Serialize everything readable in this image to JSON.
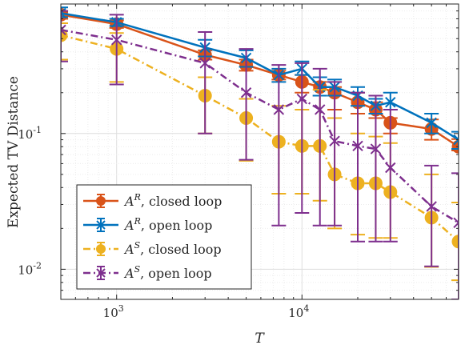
{
  "chart_data": {
    "type": "line",
    "xlabel": "T",
    "ylabel": "Expected TV Distance",
    "xscale": "log",
    "yscale": "log",
    "xlim": [
      500,
      70000
    ],
    "ylim": [
      0.006,
      0.9
    ],
    "grid": true,
    "legend_position": "bottom-left",
    "x_ticks": [
      {
        "value": 1000,
        "base": "10",
        "exp": "3"
      },
      {
        "value": 10000,
        "base": "10",
        "exp": "4"
      }
    ],
    "y_ticks": [
      {
        "value": 0.01,
        "base": "10",
        "exp": "-2"
      },
      {
        "value": 0.1,
        "base": "10",
        "exp": "-1"
      }
    ],
    "series": [
      {
        "name": "A^R, closed loop",
        "legend_base": "A",
        "legend_sup": "R",
        "legend_rest": ", closed loop",
        "color": "#D95319",
        "line": "solid",
        "marker": "circle",
        "x": [
          500,
          1000,
          3000,
          5000,
          7500,
          10000,
          12500,
          15000,
          20000,
          25000,
          30000,
          50000,
          70000
        ],
        "y": [
          0.75,
          0.64,
          0.38,
          0.32,
          0.27,
          0.24,
          0.22,
          0.2,
          0.17,
          0.15,
          0.12,
          0.108,
          0.08
        ],
        "err_low": [
          0.7,
          0.6,
          0.35,
          0.29,
          0.25,
          0.2,
          0.19,
          0.15,
          0.14,
          0.13,
          0.1,
          0.09,
          0.075
        ],
        "err_high": [
          0.78,
          0.68,
          0.41,
          0.35,
          0.29,
          0.27,
          0.24,
          0.22,
          0.2,
          0.17,
          0.13,
          0.127,
          0.091
        ]
      },
      {
        "name": "A^R, open loop",
        "legend_base": "A",
        "legend_sup": "R",
        "legend_rest": ", open loop",
        "color": "#0072BD",
        "line": "solid",
        "marker": "x",
        "x": [
          500,
          1000,
          3000,
          5000,
          7500,
          10000,
          12500,
          15000,
          20000,
          25000,
          30000,
          50000,
          70000
        ],
        "y": [
          0.77,
          0.66,
          0.43,
          0.36,
          0.27,
          0.3,
          0.22,
          0.22,
          0.19,
          0.16,
          0.17,
          0.12,
          0.09
        ],
        "err_low": [
          0.72,
          0.62,
          0.37,
          0.31,
          0.24,
          0.27,
          0.19,
          0.19,
          0.16,
          0.14,
          0.15,
          0.1,
          0.077
        ],
        "err_high": [
          0.85,
          0.7,
          0.49,
          0.41,
          0.3,
          0.34,
          0.26,
          0.25,
          0.22,
          0.18,
          0.2,
          0.14,
          0.103
        ]
      },
      {
        "name": "A^S, closed loop",
        "legend_base": "A",
        "legend_sup": "S",
        "legend_rest": ", closed loop",
        "color": "#EDB120",
        "line": "dashdot",
        "marker": "circle",
        "x": [
          500,
          1000,
          3000,
          5000,
          7500,
          10000,
          12500,
          15000,
          20000,
          25000,
          30000,
          50000,
          70000
        ],
        "y": [
          0.53,
          0.42,
          0.19,
          0.13,
          0.087,
          0.081,
          0.081,
          0.05,
          0.043,
          0.043,
          0.037,
          0.024,
          0.016
        ],
        "err_low": [
          0.35,
          0.24,
          0.1,
          0.063,
          0.036,
          0.036,
          0.032,
          0.02,
          0.018,
          0.017,
          0.017,
          0.0104,
          0.0083
        ],
        "err_high": [
          0.65,
          0.55,
          0.26,
          0.18,
          0.16,
          0.15,
          0.21,
          0.13,
          0.1,
          0.095,
          0.085,
          0.05,
          0.031
        ]
      },
      {
        "name": "A^S, open loop",
        "legend_base": "A",
        "legend_sup": "S",
        "legend_rest": ", open loop",
        "color": "#7E2F8E",
        "line": "dashdot",
        "marker": "x",
        "x": [
          500,
          1000,
          3000,
          5000,
          7500,
          10000,
          12500,
          15000,
          20000,
          25000,
          30000,
          50000,
          70000
        ],
        "y": [
          0.58,
          0.49,
          0.33,
          0.2,
          0.15,
          0.18,
          0.15,
          0.088,
          0.081,
          0.077,
          0.056,
          0.029,
          0.022
        ],
        "err_low": [
          0.34,
          0.23,
          0.1,
          0.064,
          0.021,
          0.026,
          0.021,
          0.021,
          0.016,
          0.016,
          0.016,
          0.0105,
          0.006
        ],
        "err_high": [
          0.8,
          0.75,
          0.56,
          0.42,
          0.32,
          0.33,
          0.3,
          0.24,
          0.2,
          0.19,
          0.15,
          0.058,
          0.051
        ]
      }
    ]
  }
}
